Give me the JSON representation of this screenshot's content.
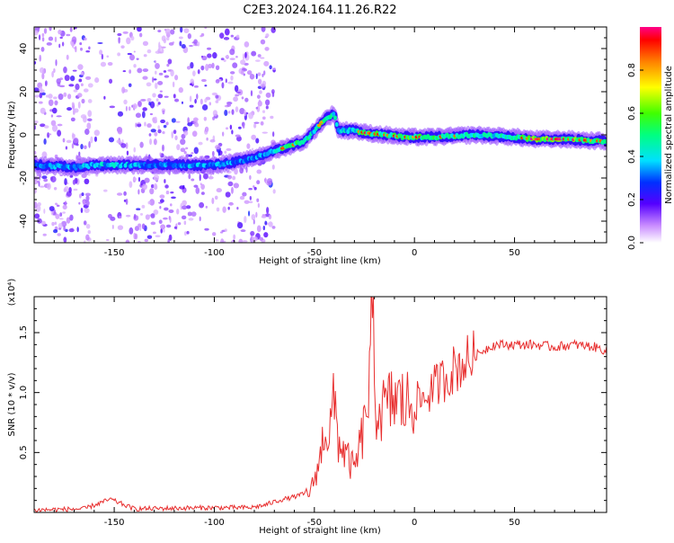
{
  "title": "C2E3.2024.164.11.26.R22",
  "chart_data": [
    {
      "type": "heatmap",
      "xlabel": "Height of straight line (km)",
      "ylabel": "Frequency (Hz)",
      "xlim": [
        -190,
        96
      ],
      "ylim": [
        -50,
        50
      ],
      "xticks": [
        -150,
        -100,
        -50,
        0,
        50
      ],
      "yticks": [
        -40,
        -20,
        0,
        20,
        40
      ],
      "colorbar": {
        "label": "Normalized spectral amplitude",
        "range": [
          0.0,
          1.0
        ],
        "ticks": [
          0.0,
          0.2,
          0.4,
          0.6,
          0.8
        ],
        "tick_labels": [
          "0.0",
          "0.2",
          "0.4",
          "0.6",
          "0.8"
        ]
      },
      "trace": [
        {
          "x": -190,
          "y": -14,
          "a": 0.55
        },
        {
          "x": -170,
          "y": -15,
          "a": 0.55
        },
        {
          "x": -160,
          "y": -14,
          "a": 0.6
        },
        {
          "x": -150,
          "y": -14,
          "a": 0.6
        },
        {
          "x": -130,
          "y": -14,
          "a": 0.5
        },
        {
          "x": -110,
          "y": -14,
          "a": 0.55
        },
        {
          "x": -100,
          "y": -14,
          "a": 0.55
        },
        {
          "x": -85,
          "y": -12,
          "a": 0.5
        },
        {
          "x": -75,
          "y": -9,
          "a": 0.55
        },
        {
          "x": -65,
          "y": -6,
          "a": 0.8
        },
        {
          "x": -55,
          "y": -3,
          "a": 0.75
        },
        {
          "x": -50,
          "y": 2,
          "a": 0.6
        },
        {
          "x": -45,
          "y": 7,
          "a": 0.85
        },
        {
          "x": -40,
          "y": 10,
          "a": 0.7
        },
        {
          "x": -38,
          "y": 2,
          "a": 0.6
        },
        {
          "x": -30,
          "y": 2,
          "a": 0.65
        },
        {
          "x": -25,
          "y": 1,
          "a": 0.9
        },
        {
          "x": -15,
          "y": 0,
          "a": 0.75
        },
        {
          "x": -5,
          "y": -1,
          "a": 0.85
        },
        {
          "x": 10,
          "y": -1,
          "a": 0.8
        },
        {
          "x": 30,
          "y": 0,
          "a": 0.7
        },
        {
          "x": 50,
          "y": -1,
          "a": 0.7
        },
        {
          "x": 60,
          "y": -2,
          "a": 0.95
        },
        {
          "x": 75,
          "y": -2,
          "a": 0.95
        },
        {
          "x": 96,
          "y": -3,
          "a": 0.75
        }
      ]
    },
    {
      "type": "line",
      "xlabel": "Height of straight line (km)",
      "ylabel": "SNR (10 * v/v)",
      "y_multiplier": "(x10⁴)",
      "xlim": [
        -190,
        96
      ],
      "ylim": [
        0,
        1.8
      ],
      "xticks": [
        -150,
        -100,
        -50,
        0,
        50
      ],
      "yticks": [
        0.5,
        1.0,
        1.5
      ],
      "ytick_labels": [
        "0.5",
        "1.0",
        "1.5"
      ],
      "series": [
        {
          "color": "#e83030",
          "x": [
            -190,
            -165,
            -152,
            -140,
            -100,
            -82,
            -75,
            -68,
            -60,
            -52,
            -47,
            -45,
            -43,
            -40,
            -38,
            -35,
            -30,
            -25,
            -22,
            -21,
            -20,
            -15,
            -10,
            -5,
            0,
            5,
            10,
            15,
            20,
            25,
            30,
            35,
            40,
            50,
            60,
            70,
            80,
            90,
            96
          ],
          "y": [
            0.02,
            0.03,
            0.11,
            0.03,
            0.04,
            0.04,
            0.06,
            0.1,
            0.13,
            0.17,
            0.45,
            0.72,
            0.62,
            0.92,
            0.6,
            0.5,
            0.35,
            0.72,
            1.15,
            1.78,
            0.9,
            0.85,
            0.95,
            0.9,
            0.92,
            0.95,
            1.05,
            1.12,
            1.2,
            1.25,
            1.3,
            1.36,
            1.4,
            1.4,
            1.4,
            1.38,
            1.4,
            1.38,
            1.35
          ]
        }
      ]
    }
  ]
}
